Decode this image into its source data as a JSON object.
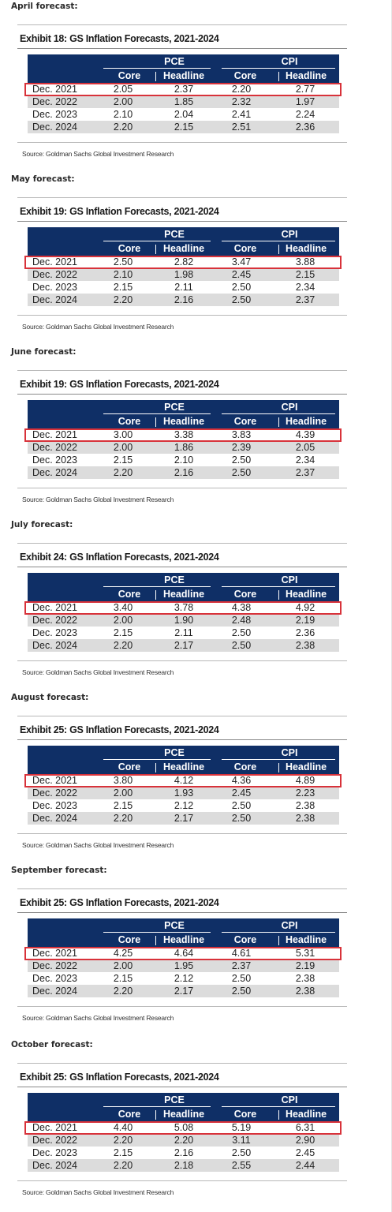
{
  "forecasts": [
    {
      "label": "April forecast:",
      "exhibit_title": "Exhibit 18: GS Inflation Forecasts, 2021-2024",
      "groups": [
        "PCE",
        "CPI"
      ],
      "subheaders": [
        "Core",
        "Headline",
        "Core",
        "Headline"
      ],
      "rows": [
        {
          "label": "Dec. 2021",
          "values": [
            "2.05",
            "2.37",
            "2.20",
            "2.77"
          ]
        },
        {
          "label": "Dec. 2022",
          "values": [
            "2.00",
            "1.85",
            "2.32",
            "1.97"
          ]
        },
        {
          "label": "Dec. 2023",
          "values": [
            "2.10",
            "2.04",
            "2.41",
            "2.24"
          ]
        },
        {
          "label": "Dec. 2024",
          "values": [
            "2.20",
            "2.15",
            "2.51",
            "2.36"
          ]
        }
      ],
      "source": "Source: Goldman Sachs Global Investment Research"
    },
    {
      "label": "May forecast:",
      "exhibit_title": "Exhibit 19: GS Inflation Forecasts, 2021-2024",
      "groups": [
        "PCE",
        "CPI"
      ],
      "subheaders": [
        "Core",
        "Headline",
        "Core",
        "Headline"
      ],
      "rows": [
        {
          "label": "Dec. 2021",
          "values": [
            "2.50",
            "2.82",
            "3.47",
            "3.88"
          ]
        },
        {
          "label": "Dec. 2022",
          "values": [
            "2.10",
            "1.98",
            "2.45",
            "2.15"
          ]
        },
        {
          "label": "Dec. 2023",
          "values": [
            "2.15",
            "2.11",
            "2.50",
            "2.34"
          ]
        },
        {
          "label": "Dec. 2024",
          "values": [
            "2.20",
            "2.16",
            "2.50",
            "2.37"
          ]
        }
      ],
      "source": "Source: Goldman Sachs Global Investment Research"
    },
    {
      "label": "June forecast:",
      "exhibit_title": "Exhibit 19: GS Inflation Forecasts, 2021-2024",
      "groups": [
        "PCE",
        "CPI"
      ],
      "subheaders": [
        "Core",
        "Headline",
        "Core",
        "Headline"
      ],
      "rows": [
        {
          "label": "Dec. 2021",
          "values": [
            "3.00",
            "3.38",
            "3.83",
            "4.39"
          ]
        },
        {
          "label": "Dec. 2022",
          "values": [
            "2.00",
            "1.86",
            "2.39",
            "2.05"
          ]
        },
        {
          "label": "Dec. 2023",
          "values": [
            "2.15",
            "2.10",
            "2.50",
            "2.34"
          ]
        },
        {
          "label": "Dec. 2024",
          "values": [
            "2.20",
            "2.16",
            "2.50",
            "2.37"
          ]
        }
      ],
      "source": "Source: Goldman Sachs Global Investment Research"
    },
    {
      "label": "July forecast:",
      "exhibit_title": "Exhibit 24: GS Inflation Forecasts, 2021-2024",
      "groups": [
        "PCE",
        "CPI"
      ],
      "subheaders": [
        "Core",
        "Headline",
        "Core",
        "Headline"
      ],
      "rows": [
        {
          "label": "Dec. 2021",
          "values": [
            "3.40",
            "3.78",
            "4.38",
            "4.92"
          ]
        },
        {
          "label": "Dec. 2022",
          "values": [
            "2.00",
            "1.90",
            "2.48",
            "2.19"
          ]
        },
        {
          "label": "Dec. 2023",
          "values": [
            "2.15",
            "2.11",
            "2.50",
            "2.36"
          ]
        },
        {
          "label": "Dec. 2024",
          "values": [
            "2.20",
            "2.17",
            "2.50",
            "2.38"
          ]
        }
      ],
      "source": "Source: Goldman Sachs Global Investment Research"
    },
    {
      "label": "August forecast:",
      "exhibit_title": "Exhibit 25: GS Inflation Forecasts, 2021-2024",
      "groups": [
        "PCE",
        "CPI"
      ],
      "subheaders": [
        "Core",
        "Headline",
        "Core",
        "Headline"
      ],
      "rows": [
        {
          "label": "Dec. 2021",
          "values": [
            "3.80",
            "4.12",
            "4.36",
            "4.89"
          ]
        },
        {
          "label": "Dec. 2022",
          "values": [
            "2.00",
            "1.93",
            "2.45",
            "2.23"
          ]
        },
        {
          "label": "Dec. 2023",
          "values": [
            "2.15",
            "2.12",
            "2.50",
            "2.38"
          ]
        },
        {
          "label": "Dec. 2024",
          "values": [
            "2.20",
            "2.17",
            "2.50",
            "2.38"
          ]
        }
      ],
      "source": "Source: Goldman Sachs Global Investment Research"
    },
    {
      "label": "September forecast:",
      "exhibit_title": "Exhibit 25: GS Inflation Forecasts, 2021-2024",
      "groups": [
        "PCE",
        "CPI"
      ],
      "subheaders": [
        "Core",
        "Headline",
        "Core",
        "Headline"
      ],
      "rows": [
        {
          "label": "Dec. 2021",
          "values": [
            "4.25",
            "4.64",
            "4.61",
            "5.31"
          ]
        },
        {
          "label": "Dec. 2022",
          "values": [
            "2.00",
            "1.95",
            "2.37",
            "2.19"
          ]
        },
        {
          "label": "Dec. 2023",
          "values": [
            "2.15",
            "2.12",
            "2.50",
            "2.38"
          ]
        },
        {
          "label": "Dec. 2024",
          "values": [
            "2.20",
            "2.17",
            "2.50",
            "2.38"
          ]
        }
      ],
      "source": "Source: Goldman Sachs Global Investment Research"
    },
    {
      "label": "October forecast:",
      "exhibit_title": "Exhibit 25: GS Inflation Forecasts, 2021-2024",
      "groups": [
        "PCE",
        "CPI"
      ],
      "subheaders": [
        "Core",
        "Headline",
        "Core",
        "Headline"
      ],
      "rows": [
        {
          "label": "Dec. 2021",
          "values": [
            "4.40",
            "5.08",
            "5.19",
            "6.31"
          ]
        },
        {
          "label": "Dec. 2022",
          "values": [
            "2.20",
            "2.20",
            "3.11",
            "2.90"
          ]
        },
        {
          "label": "Dec. 2023",
          "values": [
            "2.15",
            "2.16",
            "2.50",
            "2.45"
          ]
        },
        {
          "label": "Dec. 2024",
          "values": [
            "2.20",
            "2.18",
            "2.55",
            "2.44"
          ]
        }
      ],
      "source": "Source: Goldman Sachs Global Investment Research"
    }
  ],
  "colors": {
    "header_bg": "#0f2f66",
    "header_text": "#ffffff",
    "shaded_row": "#dcdcdc",
    "highlight_box": "#d8323a"
  }
}
